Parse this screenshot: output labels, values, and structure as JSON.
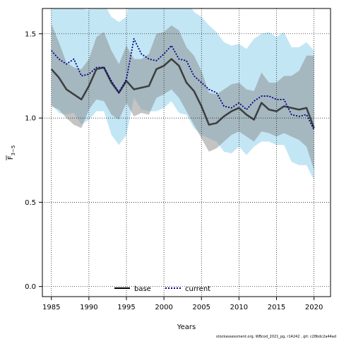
{
  "chart_data": {
    "type": "line",
    "xlabel": "Years",
    "ylabel_main": "F",
    "ylabel_sub": "3−5",
    "xlim": [
      1983.8,
      2022.2
    ],
    "ylim": [
      -0.06,
      1.65
    ],
    "x_ticks": [
      "1985",
      "1990",
      "1995",
      "2000",
      "2005",
      "2010",
      "2015",
      "2020"
    ],
    "y_ticks": [
      "0.0",
      "0.5",
      "1.0",
      "1.5"
    ],
    "grid": true,
    "legend_position": "bottom-center",
    "footer_text": "stockassessment.org, WBcod_2021_pg, r14242 , git: c28bdc2a44ad",
    "colors": {
      "base_band": "#8a8a8a",
      "current_band": "#87ceeb",
      "base_line": "#000000",
      "current_line": "#00008b"
    },
    "series": [
      {
        "name": "base",
        "style": "solid",
        "x": [
          1985,
          1986,
          1987,
          1988,
          1989,
          1990,
          1991,
          1992,
          1993,
          1994,
          1995,
          1996,
          1997,
          1998,
          1999,
          2000,
          2001,
          2002,
          2003,
          2004,
          2005,
          2006,
          2007,
          2008,
          2009,
          2010,
          2011,
          2012,
          2013,
          2014,
          2015,
          2016,
          2017,
          2018,
          2019,
          2020
        ],
        "values": [
          1.29,
          1.24,
          1.17,
          1.14,
          1.11,
          1.19,
          1.29,
          1.3,
          1.21,
          1.15,
          1.22,
          1.17,
          1.18,
          1.19,
          1.29,
          1.31,
          1.35,
          1.31,
          1.21,
          1.16,
          1.07,
          0.96,
          0.97,
          1.01,
          1.04,
          1.06,
          1.02,
          0.99,
          1.09,
          1.05,
          1.04,
          1.07,
          1.06,
          1.05,
          1.06,
          0.94
        ],
        "lower": [
          1.07,
          1.05,
          1.0,
          0.96,
          0.94,
          1.05,
          1.11,
          1.1,
          1.02,
          0.99,
          1.09,
          1.01,
          1.03,
          1.02,
          1.12,
          1.14,
          1.17,
          1.12,
          1.04,
          0.96,
          0.88,
          0.8,
          0.82,
          0.86,
          0.9,
          0.92,
          0.89,
          0.86,
          0.92,
          0.91,
          0.89,
          0.91,
          0.89,
          0.87,
          0.83,
          0.69
        ],
        "upper": [
          1.56,
          1.45,
          1.33,
          1.3,
          1.29,
          1.35,
          1.48,
          1.51,
          1.4,
          1.32,
          1.43,
          1.35,
          1.35,
          1.38,
          1.5,
          1.51,
          1.55,
          1.52,
          1.42,
          1.37,
          1.28,
          1.15,
          1.14,
          1.17,
          1.2,
          1.21,
          1.17,
          1.16,
          1.27,
          1.21,
          1.21,
          1.25,
          1.25,
          1.28,
          1.37,
          1.37
        ]
      },
      {
        "name": "current",
        "style": "dotted",
        "x": [
          1985,
          1986,
          1987,
          1988,
          1989,
          1990,
          1991,
          1992,
          1993,
          1994,
          1995,
          1996,
          1997,
          1998,
          1999,
          2000,
          2001,
          2002,
          2003,
          2004,
          2005,
          2006,
          2007,
          2008,
          2009,
          2010,
          2011,
          2012,
          2013,
          2014,
          2015,
          2016,
          2017,
          2018,
          2019,
          2020
        ],
        "values": [
          1.4,
          1.35,
          1.32,
          1.35,
          1.25,
          1.26,
          1.3,
          1.3,
          1.22,
          1.15,
          1.23,
          1.47,
          1.38,
          1.35,
          1.34,
          1.38,
          1.43,
          1.35,
          1.34,
          1.25,
          1.21,
          1.17,
          1.15,
          1.07,
          1.06,
          1.09,
          1.05,
          1.1,
          1.13,
          1.13,
          1.11,
          1.11,
          1.02,
          1.01,
          1.02,
          0.93
        ],
        "lower": [
          1.08,
          1.03,
          1.02,
          1.03,
          0.96,
          0.99,
          1.04,
          1.04,
          0.9,
          0.84,
          0.9,
          1.12,
          1.05,
          1.04,
          1.04,
          1.06,
          1.1,
          1.03,
          1.02,
          0.94,
          0.9,
          0.88,
          0.86,
          0.8,
          0.79,
          0.83,
          0.78,
          0.83,
          0.86,
          0.86,
          0.84,
          0.84,
          0.74,
          0.72,
          0.72,
          0.63
        ],
        "upper": [
          1.75,
          1.72,
          1.65,
          1.7,
          1.65,
          1.64,
          1.69,
          1.68,
          1.6,
          1.57,
          1.6,
          1.9,
          1.76,
          1.72,
          1.68,
          1.75,
          1.78,
          1.71,
          1.7,
          1.63,
          1.6,
          1.55,
          1.51,
          1.45,
          1.43,
          1.44,
          1.41,
          1.47,
          1.5,
          1.51,
          1.48,
          1.51,
          1.42,
          1.42,
          1.45,
          1.4
        ]
      }
    ]
  }
}
